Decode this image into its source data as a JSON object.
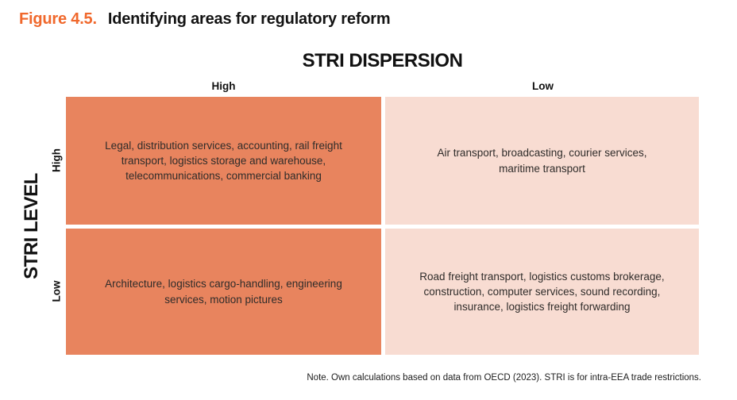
{
  "figure": {
    "label": "Figure 4.5.",
    "title": "Identifying areas for regulatory reform"
  },
  "matrix": {
    "x_axis": {
      "title": "STRI DISPERSION",
      "categories": [
        "High",
        "Low"
      ]
    },
    "y_axis": {
      "title": "STRI LEVEL",
      "categories": [
        "High",
        "Low"
      ]
    },
    "quadrants": [
      {
        "stri_level": "High",
        "stri_dispersion": "High",
        "text": "Legal, distribution services, accounting, rail freight transport, logistics storage and warehouse, telecommunications, commercial banking"
      },
      {
        "stri_level": "High",
        "stri_dispersion": "Low",
        "text": "Air transport, broadcasting, courier services, maritime transport"
      },
      {
        "stri_level": "Low",
        "stri_dispersion": "High",
        "text": "Architecture, logistics cargo-handling, engineering services, motion pictures"
      },
      {
        "stri_level": "Low",
        "stri_dispersion": "Low",
        "text": "Road freight transport, logistics customs brokerage, construction, computer services, sound recording, insurance, logistics freight forwarding"
      }
    ]
  },
  "note": "Note. Own calculations based on data from OECD (2023). STRI is for intra-EEA trade restrictions.",
  "colors": {
    "figure_label": "#f0682c",
    "high_dispersion_fill": "#e8845e",
    "low_dispersion_fill": "#f8dcd2",
    "quadrant_text": "#2f2c2a"
  }
}
